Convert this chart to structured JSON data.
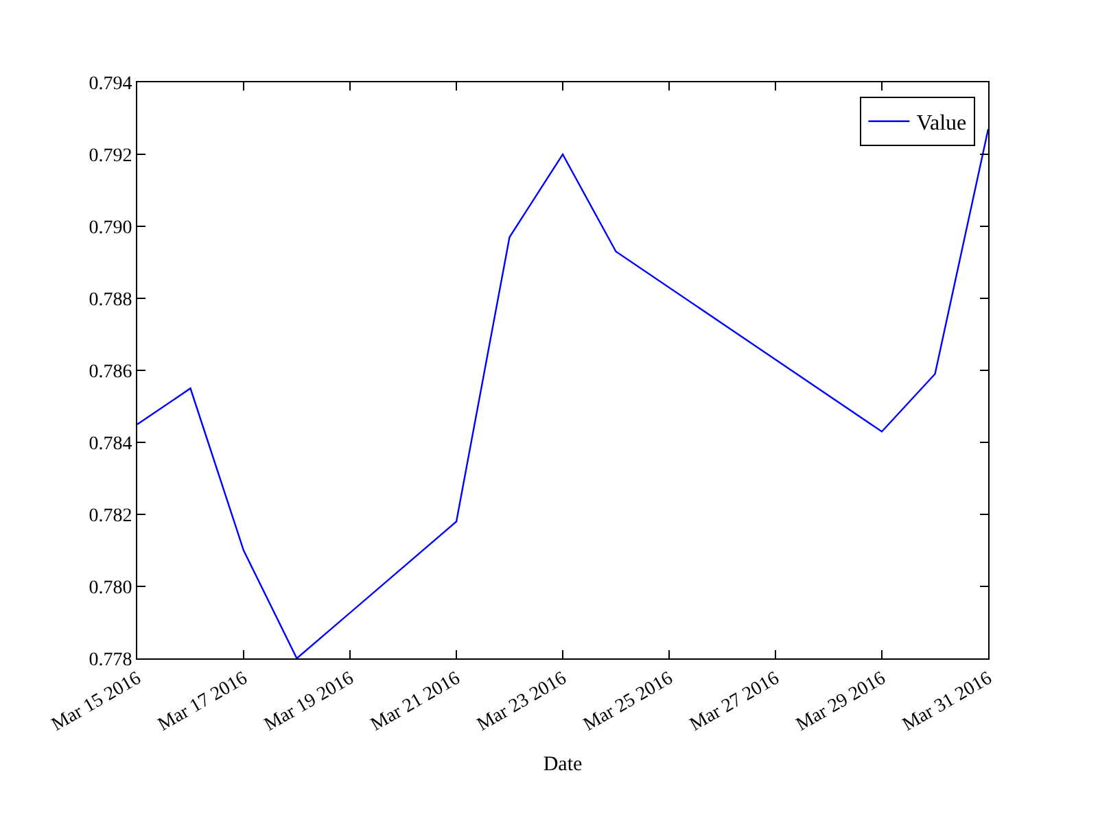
{
  "chart_data": {
    "type": "line",
    "xlabel": "Date",
    "x": [
      "2016-03-15",
      "2016-03-16",
      "2016-03-17",
      "2016-03-18",
      "2016-03-21",
      "2016-03-22",
      "2016-03-23",
      "2016-03-24",
      "2016-03-29",
      "2016-03-30",
      "2016-03-31"
    ],
    "series": [
      {
        "name": "Value",
        "color": "#0000ff",
        "values": [
          0.7845,
          0.7855,
          0.781,
          0.778,
          0.7818,
          0.7897,
          0.792,
          0.7893,
          0.7843,
          0.7859,
          0.7927
        ]
      }
    ],
    "xlim": [
      "2016-03-15",
      "2016-03-31"
    ],
    "xticks": [
      {
        "value": "2016-03-15",
        "label": "Mar 15 2016"
      },
      {
        "value": "2016-03-17",
        "label": "Mar 17 2016"
      },
      {
        "value": "2016-03-19",
        "label": "Mar 19 2016"
      },
      {
        "value": "2016-03-21",
        "label": "Mar 21 2016"
      },
      {
        "value": "2016-03-23",
        "label": "Mar 23 2016"
      },
      {
        "value": "2016-03-25",
        "label": "Mar 25 2016"
      },
      {
        "value": "2016-03-27",
        "label": "Mar 27 2016"
      },
      {
        "value": "2016-03-29",
        "label": "Mar 29 2016"
      },
      {
        "value": "2016-03-31",
        "label": "Mar 31 2016"
      }
    ],
    "ylim": [
      0.778,
      0.794
    ],
    "yticks": [
      {
        "value": 0.778,
        "label": "0.778"
      },
      {
        "value": 0.78,
        "label": "0.780"
      },
      {
        "value": 0.782,
        "label": "0.782"
      },
      {
        "value": 0.784,
        "label": "0.784"
      },
      {
        "value": 0.786,
        "label": "0.786"
      },
      {
        "value": 0.788,
        "label": "0.788"
      },
      {
        "value": 0.79,
        "label": "0.790"
      },
      {
        "value": 0.792,
        "label": "0.792"
      },
      {
        "value": 0.794,
        "label": "0.794"
      }
    ],
    "legend": "top right",
    "line_style": "solid"
  }
}
